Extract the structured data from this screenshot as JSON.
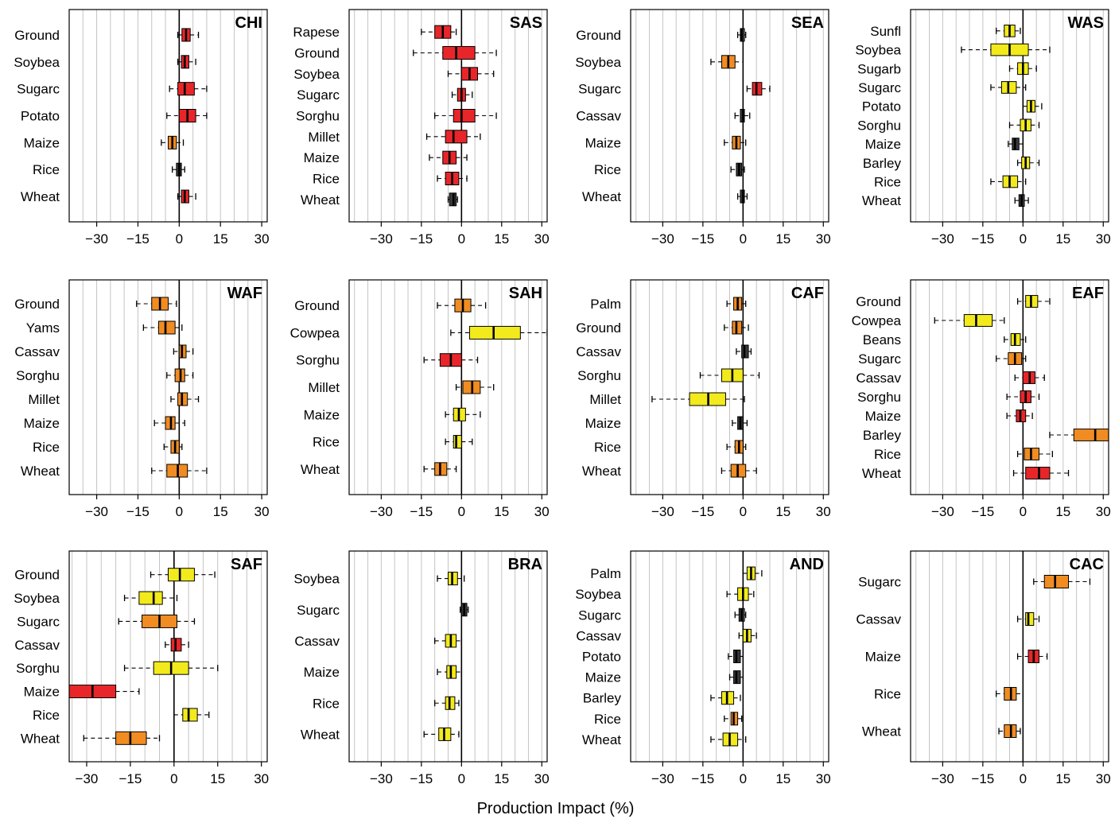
{
  "figure": {
    "xlabel": "Production Impact (%)",
    "x_ticks": [
      -30,
      -15,
      0,
      15,
      30
    ]
  },
  "chart_data": [
    {
      "type": "boxplot",
      "title": "CHI",
      "xlim": [
        -40,
        32
      ],
      "grid": true,
      "items": [
        {
          "label": "Ground",
          "color": "#e8262a",
          "q1": 1,
          "median": 2.5,
          "q3": 4,
          "wmin": -0.5,
          "wmax": 7
        },
        {
          "label": "Soybea",
          "color": "#e8262a",
          "q1": 0.8,
          "median": 2,
          "q3": 3.5,
          "wmin": -0.5,
          "wmax": 6
        },
        {
          "label": "Sugarc",
          "color": "#e8262a",
          "q1": -0.5,
          "median": 2,
          "q3": 5.5,
          "wmin": -3.5,
          "wmax": 10
        },
        {
          "label": "Potato",
          "color": "#e8262a",
          "q1": 0,
          "median": 3,
          "q3": 6,
          "wmin": -4.5,
          "wmax": 10
        },
        {
          "label": "Maize",
          "color": "#f08c22",
          "q1": -4,
          "median": -2.5,
          "q3": -1,
          "wmin": -6.5,
          "wmax": 1.5
        },
        {
          "label": "Rice",
          "color": "#3a3a3a",
          "q1": -1,
          "median": 0,
          "q3": 0.8,
          "wmin": -2.5,
          "wmax": 2
        },
        {
          "label": "Wheat",
          "color": "#e8262a",
          "q1": 0.8,
          "median": 2,
          "q3": 3.5,
          "wmin": -0.5,
          "wmax": 6
        }
      ]
    },
    {
      "type": "boxplot",
      "title": "SAS",
      "xlim": [
        -42,
        32
      ],
      "grid": true,
      "items": [
        {
          "label": "Rapese",
          "color": "#e8262a",
          "q1": -10,
          "median": -7,
          "q3": -4,
          "wmin": -15,
          "wmax": -2
        },
        {
          "label": "Ground",
          "color": "#e8262a",
          "q1": -7,
          "median": -2,
          "q3": 5,
          "wmin": -18,
          "wmax": 13
        },
        {
          "label": "Soybea",
          "color": "#e8262a",
          "q1": 0,
          "median": 3,
          "q3": 6,
          "wmin": -5,
          "wmax": 12
        },
        {
          "label": "Sugarc",
          "color": "#e8262a",
          "q1": -1.5,
          "median": 0,
          "q3": 1.5,
          "wmin": -3.5,
          "wmax": 4
        },
        {
          "label": "Sorghu",
          "color": "#e8262a",
          "q1": -3,
          "median": 0,
          "q3": 5,
          "wmin": -10,
          "wmax": 13
        },
        {
          "label": "Millet",
          "color": "#e8262a",
          "q1": -6,
          "median": -3,
          "q3": 2,
          "wmin": -13,
          "wmax": 7
        },
        {
          "label": "Maize",
          "color": "#e8262a",
          "q1": -7,
          "median": -4.5,
          "q3": -2,
          "wmin": -12,
          "wmax": 2
        },
        {
          "label": "Rice",
          "color": "#e8262a",
          "q1": -6,
          "median": -3.5,
          "q3": -1,
          "wmin": -9,
          "wmax": 2
        },
        {
          "label": "Wheat",
          "color": "#3a3a3a",
          "q1": -4.5,
          "median": -3,
          "q3": -2,
          "wmin": -5,
          "wmax": -1.5
        }
      ]
    },
    {
      "type": "boxplot",
      "title": "SEA",
      "xlim": [
        -42,
        32
      ],
      "grid": true,
      "items": [
        {
          "label": "Ground",
          "color": "#3a3a3a",
          "q1": -1,
          "median": -0.5,
          "q3": 0.5,
          "wmin": -2,
          "wmax": 1
        },
        {
          "label": "Soybea",
          "color": "#f08c22",
          "q1": -8,
          "median": -5.5,
          "q3": -3,
          "wmin": -12,
          "wmax": 0
        },
        {
          "label": "Sugarc",
          "color": "#e8262a",
          "q1": 3.5,
          "median": 5,
          "q3": 7,
          "wmin": 1.5,
          "wmax": 10
        },
        {
          "label": "Cassav",
          "color": "#3a3a3a",
          "q1": -1,
          "median": 0,
          "q3": 0.5,
          "wmin": -3,
          "wmax": 2.5
        },
        {
          "label": "Maize",
          "color": "#f08c22",
          "q1": -4,
          "median": -2.5,
          "q3": -1,
          "wmin": -7,
          "wmax": 1
        },
        {
          "label": "Rice",
          "color": "#3a3a3a",
          "q1": -2.5,
          "median": -1.5,
          "q3": -0.5,
          "wmin": -4.5,
          "wmax": 0.5
        },
        {
          "label": "Wheat",
          "color": "#3a3a3a",
          "q1": -1,
          "median": 0,
          "q3": 0.5,
          "wmin": -2,
          "wmax": 1.5
        }
      ]
    },
    {
      "type": "boxplot",
      "title": "WAS",
      "xlim": [
        -42,
        32
      ],
      "grid": true,
      "items": [
        {
          "label": "Sunfl",
          "color": "#f2ea1c",
          "q1": -7,
          "median": -5,
          "q3": -3,
          "wmin": -10,
          "wmax": -1
        },
        {
          "label": "Soybea",
          "color": "#f2ea1c",
          "q1": -12,
          "median": -5,
          "q3": 2,
          "wmin": -23,
          "wmax": 10
        },
        {
          "label": "Sugarb",
          "color": "#f2ea1c",
          "q1": -2,
          "median": 0,
          "q3": 2,
          "wmin": -5,
          "wmax": 5
        },
        {
          "label": "Sugarc",
          "color": "#f2ea1c",
          "q1": -8,
          "median": -5.5,
          "q3": -2.5,
          "wmin": -12,
          "wmax": 1
        },
        {
          "label": "Potato",
          "color": "#f2ea1c",
          "q1": 1.5,
          "median": 3,
          "q3": 4.5,
          "wmin": 0,
          "wmax": 7
        },
        {
          "label": "Sorghu",
          "color": "#f2ea1c",
          "q1": -1,
          "median": 1,
          "q3": 3,
          "wmin": -5,
          "wmax": 6
        },
        {
          "label": "Maize",
          "color": "#3a3a3a",
          "q1": -4,
          "median": -3,
          "q3": -1.5,
          "wmin": -5.5,
          "wmax": 0
        },
        {
          "label": "Barley",
          "color": "#f2ea1c",
          "q1": -0.5,
          "median": 1,
          "q3": 2.5,
          "wmin": -2,
          "wmax": 6
        },
        {
          "label": "Rice",
          "color": "#f2ea1c",
          "q1": -7.5,
          "median": -5,
          "q3": -2,
          "wmin": -12,
          "wmax": 1
        },
        {
          "label": "Wheat",
          "color": "#3a3a3a",
          "q1": -1.5,
          "median": -0.5,
          "q3": 0.5,
          "wmin": -3,
          "wmax": 2
        }
      ]
    },
    {
      "type": "boxplot",
      "title": "WAF",
      "xlim": [
        -40,
        32
      ],
      "grid": true,
      "items": [
        {
          "label": "Ground",
          "color": "#f08c22",
          "q1": -10,
          "median": -7,
          "q3": -4,
          "wmin": -15.5,
          "wmax": -1
        },
        {
          "label": "Yams",
          "color": "#f08c22",
          "q1": -7.5,
          "median": -5,
          "q3": -1.5,
          "wmin": -13,
          "wmax": 1
        },
        {
          "label": "Cassav",
          "color": "#f08c22",
          "q1": 0,
          "median": 1,
          "q3": 2.5,
          "wmin": -2,
          "wmax": 5
        },
        {
          "label": "Sorghu",
          "color": "#f08c22",
          "q1": -1.5,
          "median": 0.5,
          "q3": 2,
          "wmin": -4.5,
          "wmax": 5
        },
        {
          "label": "Millet",
          "color": "#f08c22",
          "q1": -0.5,
          "median": 1,
          "q3": 3,
          "wmin": -3,
          "wmax": 7
        },
        {
          "label": "Maize",
          "color": "#f08c22",
          "q1": -5,
          "median": -3,
          "q3": -1.5,
          "wmin": -9,
          "wmax": 2
        },
        {
          "label": "Rice",
          "color": "#f08c22",
          "q1": -3,
          "median": -1.5,
          "q3": 0,
          "wmin": -5.5,
          "wmax": 1
        },
        {
          "label": "Wheat",
          "color": "#f08c22",
          "q1": -4.5,
          "median": -0.5,
          "q3": 3,
          "wmin": -10,
          "wmax": 10
        }
      ]
    },
    {
      "type": "boxplot",
      "title": "SAH",
      "xlim": [
        -42,
        32
      ],
      "grid": true,
      "items": [
        {
          "label": "Ground",
          "color": "#f08c22",
          "q1": -2.5,
          "median": 0.5,
          "q3": 3.5,
          "wmin": -9,
          "wmax": 9
        },
        {
          "label": "Cowpea",
          "color": "#f2ea1c",
          "q1": 3,
          "median": 12,
          "q3": 22,
          "wmin": -4,
          "wmax": 32
        },
        {
          "label": "Sorghu",
          "color": "#e8262a",
          "q1": -8,
          "median": -4,
          "q3": 0,
          "wmin": -14,
          "wmax": 6
        },
        {
          "label": "Millet",
          "color": "#f08c22",
          "q1": 0.5,
          "median": 4,
          "q3": 7,
          "wmin": -2,
          "wmax": 12
        },
        {
          "label": "Maize",
          "color": "#f2ea1c",
          "q1": -3,
          "median": -1,
          "q3": 1.5,
          "wmin": -6,
          "wmax": 7
        },
        {
          "label": "Rice",
          "color": "#f2ea1c",
          "q1": -3,
          "median": -2,
          "q3": 0,
          "wmin": -6,
          "wmax": 4
        },
        {
          "label": "Wheat",
          "color": "#f08c22",
          "q1": -10,
          "median": -8,
          "q3": -5.5,
          "wmin": -14,
          "wmax": -2
        }
      ]
    },
    {
      "type": "boxplot",
      "title": "CAF",
      "xlim": [
        -42,
        32
      ],
      "grid": true,
      "items": [
        {
          "label": "Palm",
          "color": "#f08c22",
          "q1": -3.5,
          "median": -2,
          "q3": -0.5,
          "wmin": -6,
          "wmax": 1
        },
        {
          "label": "Ground",
          "color": "#f08c22",
          "q1": -4,
          "median": -2.5,
          "q3": -0.5,
          "wmin": -7,
          "wmax": 2
        },
        {
          "label": "Cassav",
          "color": "#3a3a3a",
          "q1": -0.5,
          "median": 0.5,
          "q3": 2,
          "wmin": -2.5,
          "wmax": 3
        },
        {
          "label": "Sorghu",
          "color": "#f2ea1c",
          "q1": -8,
          "median": -4,
          "q3": 0,
          "wmin": -16,
          "wmax": 6
        },
        {
          "label": "Millet",
          "color": "#f2ea1c",
          "q1": -20,
          "median": -13,
          "q3": -6.5,
          "wmin": -34,
          "wmax": 0.5
        },
        {
          "label": "Maize",
          "color": "#3a3a3a",
          "q1": -2,
          "median": -1,
          "q3": 0,
          "wmin": -4,
          "wmax": 1.5
        },
        {
          "label": "Rice",
          "color": "#f08c22",
          "q1": -3,
          "median": -1.5,
          "q3": 0,
          "wmin": -6,
          "wmax": 1
        },
        {
          "label": "Wheat",
          "color": "#f08c22",
          "q1": -4.5,
          "median": -2,
          "q3": 1,
          "wmin": -8,
          "wmax": 5
        }
      ]
    },
    {
      "type": "boxplot",
      "title": "EAF",
      "xlim": [
        -42,
        32
      ],
      "grid": true,
      "items": [
        {
          "label": "Ground",
          "color": "#f2ea1c",
          "q1": 1,
          "median": 3,
          "q3": 5.5,
          "wmin": -2,
          "wmax": 10
        },
        {
          "label": "Cowpea",
          "color": "#f2ea1c",
          "q1": -22,
          "median": -17.5,
          "q3": -11.5,
          "wmin": -33,
          "wmax": -7
        },
        {
          "label": "Beans",
          "color": "#f2ea1c",
          "q1": -4.5,
          "median": -3,
          "q3": -1,
          "wmin": -7,
          "wmax": 1
        },
        {
          "label": "Sugarc",
          "color": "#f08c22",
          "q1": -5.5,
          "median": -3,
          "q3": -0.5,
          "wmin": -10,
          "wmax": 1
        },
        {
          "label": "Cassav",
          "color": "#e8262a",
          "q1": 0,
          "median": 2.5,
          "q3": 4.5,
          "wmin": -3,
          "wmax": 8
        },
        {
          "label": "Sorghu",
          "color": "#e8262a",
          "q1": -1,
          "median": 1,
          "q3": 3,
          "wmin": -6,
          "wmax": 6
        },
        {
          "label": "Maize",
          "color": "#e8262a",
          "q1": -2.5,
          "median": -1,
          "q3": 1,
          "wmin": -6,
          "wmax": 3.5
        },
        {
          "label": "Barley",
          "color": "#f08c22",
          "q1": 19,
          "median": 27,
          "q3": 36,
          "wmin": 10,
          "wmax": 45
        },
        {
          "label": "Rice",
          "color": "#f08c22",
          "q1": 0.5,
          "median": 3,
          "q3": 6,
          "wmin": -2,
          "wmax": 11
        },
        {
          "label": "Wheat",
          "color": "#e8262a",
          "q1": 1,
          "median": 6,
          "q3": 10,
          "wmin": -3.5,
          "wmax": 17
        }
      ]
    },
    {
      "type": "boxplot",
      "title": "SAF",
      "xlim": [
        -36,
        32
      ],
      "grid": true,
      "items": [
        {
          "label": "Ground",
          "color": "#f2ea1c",
          "q1": -2,
          "median": 2,
          "q3": 7,
          "wmin": -8,
          "wmax": 14
        },
        {
          "label": "Soybea",
          "color": "#f2ea1c",
          "q1": -12,
          "median": -7,
          "q3": -4,
          "wmin": -17,
          "wmax": 1
        },
        {
          "label": "Sugarc",
          "color": "#f08c22",
          "q1": -11,
          "median": -5,
          "q3": 1,
          "wmin": -19,
          "wmax": 7
        },
        {
          "label": "Cassav",
          "color": "#e8262a",
          "q1": -1,
          "median": 0.5,
          "q3": 2.5,
          "wmin": -3,
          "wmax": 5
        },
        {
          "label": "Sorghu",
          "color": "#f2ea1c",
          "q1": -7,
          "median": -1,
          "q3": 5,
          "wmin": -17,
          "wmax": 15
        },
        {
          "label": "Maize",
          "color": "#e8262a",
          "q1": -36,
          "median": -28,
          "q3": -20,
          "wmin": -36,
          "wmax": -12
        },
        {
          "label": "Rice",
          "color": "#f2ea1c",
          "q1": 3,
          "median": 5,
          "q3": 8,
          "wmin": 0,
          "wmax": 12
        },
        {
          "label": "Wheat",
          "color": "#f08c22",
          "q1": -20,
          "median": -15,
          "q3": -9.5,
          "wmin": -31,
          "wmax": -5
        }
      ]
    },
    {
      "type": "boxplot",
      "title": "BRA",
      "xlim": [
        -42,
        32
      ],
      "grid": true,
      "items": [
        {
          "label": "Soybea",
          "color": "#f2ea1c",
          "q1": -5,
          "median": -3.5,
          "q3": -1.5,
          "wmin": -9,
          "wmax": 1
        },
        {
          "label": "Sugarc",
          "color": "#3a3a3a",
          "q1": 0,
          "median": 1,
          "q3": 2,
          "wmin": -0.5,
          "wmax": 2.5
        },
        {
          "label": "Cassav",
          "color": "#f2ea1c",
          "q1": -6,
          "median": -4,
          "q3": -2,
          "wmin": -10,
          "wmax": 0
        },
        {
          "label": "Maize",
          "color": "#f2ea1c",
          "q1": -5.5,
          "median": -4,
          "q3": -2,
          "wmin": -9,
          "wmax": 0
        },
        {
          "label": "Rice",
          "color": "#f2ea1c",
          "q1": -6,
          "median": -4.5,
          "q3": -2.5,
          "wmin": -10,
          "wmax": -1
        },
        {
          "label": "Wheat",
          "color": "#f2ea1c",
          "q1": -8.5,
          "median": -6.5,
          "q3": -4,
          "wmin": -14,
          "wmax": -1
        }
      ]
    },
    {
      "type": "boxplot",
      "title": "AND",
      "xlim": [
        -42,
        32
      ],
      "grid": true,
      "items": [
        {
          "label": "Palm",
          "color": "#f2ea1c",
          "q1": 1.5,
          "median": 3,
          "q3": 4.5,
          "wmin": 0,
          "wmax": 7
        },
        {
          "label": "Soybea",
          "color": "#f2ea1c",
          "q1": -2,
          "median": 0,
          "q3": 2,
          "wmin": -6,
          "wmax": 4
        },
        {
          "label": "Sugarc",
          "color": "#3a3a3a",
          "q1": -1.5,
          "median": -0.5,
          "q3": 0.5,
          "wmin": -3,
          "wmax": 1
        },
        {
          "label": "Cassav",
          "color": "#f2ea1c",
          "q1": 0,
          "median": 1.5,
          "q3": 3,
          "wmin": -1.5,
          "wmax": 5
        },
        {
          "label": "Potato",
          "color": "#3a3a3a",
          "q1": -3.5,
          "median": -2.5,
          "q3": -1,
          "wmin": -5.5,
          "wmax": 0
        },
        {
          "label": "Maize",
          "color": "#3a3a3a",
          "q1": -3.5,
          "median": -2.5,
          "q3": -1,
          "wmin": -5,
          "wmax": 0
        },
        {
          "label": "Barley",
          "color": "#f2ea1c",
          "q1": -8,
          "median": -6,
          "q3": -3.5,
          "wmin": -12,
          "wmax": -1
        },
        {
          "label": "Rice",
          "color": "#f08c22",
          "q1": -4.5,
          "median": -3.5,
          "q3": -2,
          "wmin": -7,
          "wmax": -0.5
        },
        {
          "label": "Wheat",
          "color": "#f2ea1c",
          "q1": -7.5,
          "median": -5,
          "q3": -2,
          "wmin": -12,
          "wmax": 1
        }
      ]
    },
    {
      "type": "boxplot",
      "title": "CAC",
      "xlim": [
        -42,
        32
      ],
      "grid": true,
      "items": [
        {
          "label": "Sugarc",
          "color": "#f08c22",
          "q1": 8,
          "median": 12,
          "q3": 17,
          "wmin": 4,
          "wmax": 25
        },
        {
          "label": "Cassav",
          "color": "#f2ea1c",
          "q1": 1,
          "median": 2,
          "q3": 4,
          "wmin": -2,
          "wmax": 6
        },
        {
          "label": "Maize",
          "color": "#e8262a",
          "q1": 2,
          "median": 4,
          "q3": 6,
          "wmin": -2,
          "wmax": 9
        },
        {
          "label": "Rice",
          "color": "#f08c22",
          "q1": -7,
          "median": -4.5,
          "q3": -2.5,
          "wmin": -10,
          "wmax": 0
        },
        {
          "label": "Wheat",
          "color": "#f08c22",
          "q1": -7,
          "median": -4.5,
          "q3": -2.5,
          "wmin": -9,
          "wmax": -1
        }
      ]
    }
  ]
}
